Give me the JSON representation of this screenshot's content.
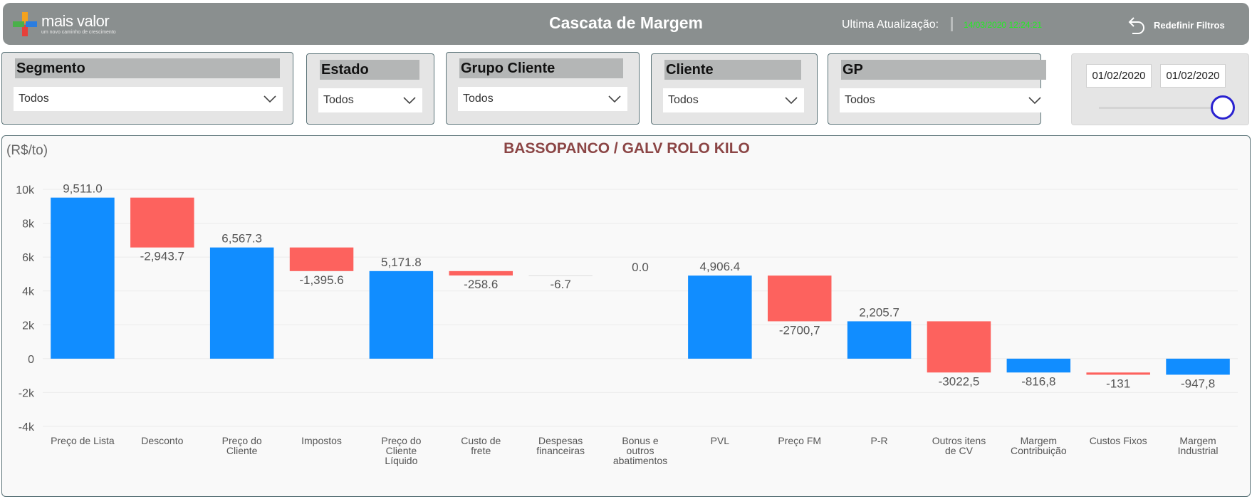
{
  "header": {
    "logo_name": "mais valor",
    "logo_tagline": "um novo caminho de crescimento",
    "title": "Cascata de Margem",
    "update_label": "Ultima  Atualização:",
    "update_value": "14/03/2020 12:24:21",
    "reset_label": "Redefinir Filtros",
    "reset_icon": "undo-arrow-icon"
  },
  "slicers": [
    {
      "title": "Segmento",
      "value": "Todos"
    },
    {
      "title": "Estado",
      "value": "Todos"
    },
    {
      "title": "Grupo Cliente",
      "value": "Todos"
    },
    {
      "title": "Cliente",
      "value": "Todos"
    },
    {
      "title": "GP",
      "value": "Todos"
    }
  ],
  "date_range": {
    "start": "01/02/2020",
    "end": "01/02/2020"
  },
  "colors": {
    "positive": "#118dff",
    "negative": "#fd625e",
    "title": "#8b4545",
    "header": "#8a8f8f"
  },
  "chart_data": {
    "type": "bar",
    "subtype": "waterfall",
    "title": "BASSOPANCO / GALV ROLO KILO",
    "unit_label": "(R$/to)",
    "ylim": [
      -4000,
      10000
    ],
    "yticks": [
      {
        "value": 10000,
        "label": "10k"
      },
      {
        "value": 8000,
        "label": "8k"
      },
      {
        "value": 6000,
        "label": "6k"
      },
      {
        "value": 4000,
        "label": "4k"
      },
      {
        "value": 2000,
        "label": "2k"
      },
      {
        "value": 0,
        "label": "0"
      },
      {
        "value": -2000,
        "label": "-2k"
      },
      {
        "value": -4000,
        "label": "-4k"
      }
    ],
    "grid": true,
    "bars": [
      {
        "category": [
          "Preço de Lista"
        ],
        "start": 0,
        "end": 9511.0,
        "label": "9,511.0",
        "kind": "total"
      },
      {
        "category": [
          "Desconto"
        ],
        "start": 9511.0,
        "end": 6567.3,
        "label": "-2,943.7",
        "kind": "delta"
      },
      {
        "category": [
          "Preço do",
          "Cliente"
        ],
        "start": 0,
        "end": 6567.3,
        "label": "6,567.3",
        "kind": "total"
      },
      {
        "category": [
          "Impostos"
        ],
        "start": 6567.3,
        "end": 5171.8,
        "label": "-1,395.6",
        "kind": "delta"
      },
      {
        "category": [
          "Preço do",
          "Cliente",
          "Líquido"
        ],
        "start": 0,
        "end": 5171.8,
        "label": "5,171.8",
        "kind": "total"
      },
      {
        "category": [
          "Custo de",
          "frete"
        ],
        "start": 5171.8,
        "end": 4913.2,
        "label": "-258.6",
        "kind": "delta"
      },
      {
        "category": [
          "Despesas",
          "financeiras"
        ],
        "start": 4913.2,
        "end": 4906.5,
        "label": "-6.7",
        "kind": "delta"
      },
      {
        "category": [
          "Bonus e",
          "outros",
          "abatimentos"
        ],
        "start": 4906.4,
        "end": 4906.4,
        "label": "0.0",
        "kind": "delta"
      },
      {
        "category": [
          "PVL"
        ],
        "start": 0,
        "end": 4906.4,
        "label": "4,906.4",
        "kind": "total"
      },
      {
        "category": [
          "Preço FM"
        ],
        "start": 4906.4,
        "end": 2205.7,
        "label": "-2700,7",
        "kind": "delta"
      },
      {
        "category": [
          "P-R"
        ],
        "start": 0,
        "end": 2205.7,
        "label": "2,205.7",
        "kind": "total"
      },
      {
        "category": [
          "Outros itens",
          "de CV"
        ],
        "start": 2205.7,
        "end": -816.8,
        "label": "-3022,5",
        "kind": "delta"
      },
      {
        "category": [
          "Margem",
          "Contribuição"
        ],
        "start": 0,
        "end": -816.8,
        "label": "-816,8",
        "kind": "total"
      },
      {
        "category": [
          "Custos Fixos"
        ],
        "start": -816.8,
        "end": -947.8,
        "label": "-131",
        "kind": "delta"
      },
      {
        "category": [
          "Margem",
          "Industrial"
        ],
        "start": 0,
        "end": -947.8,
        "label": "-947,8",
        "kind": "total"
      }
    ]
  }
}
